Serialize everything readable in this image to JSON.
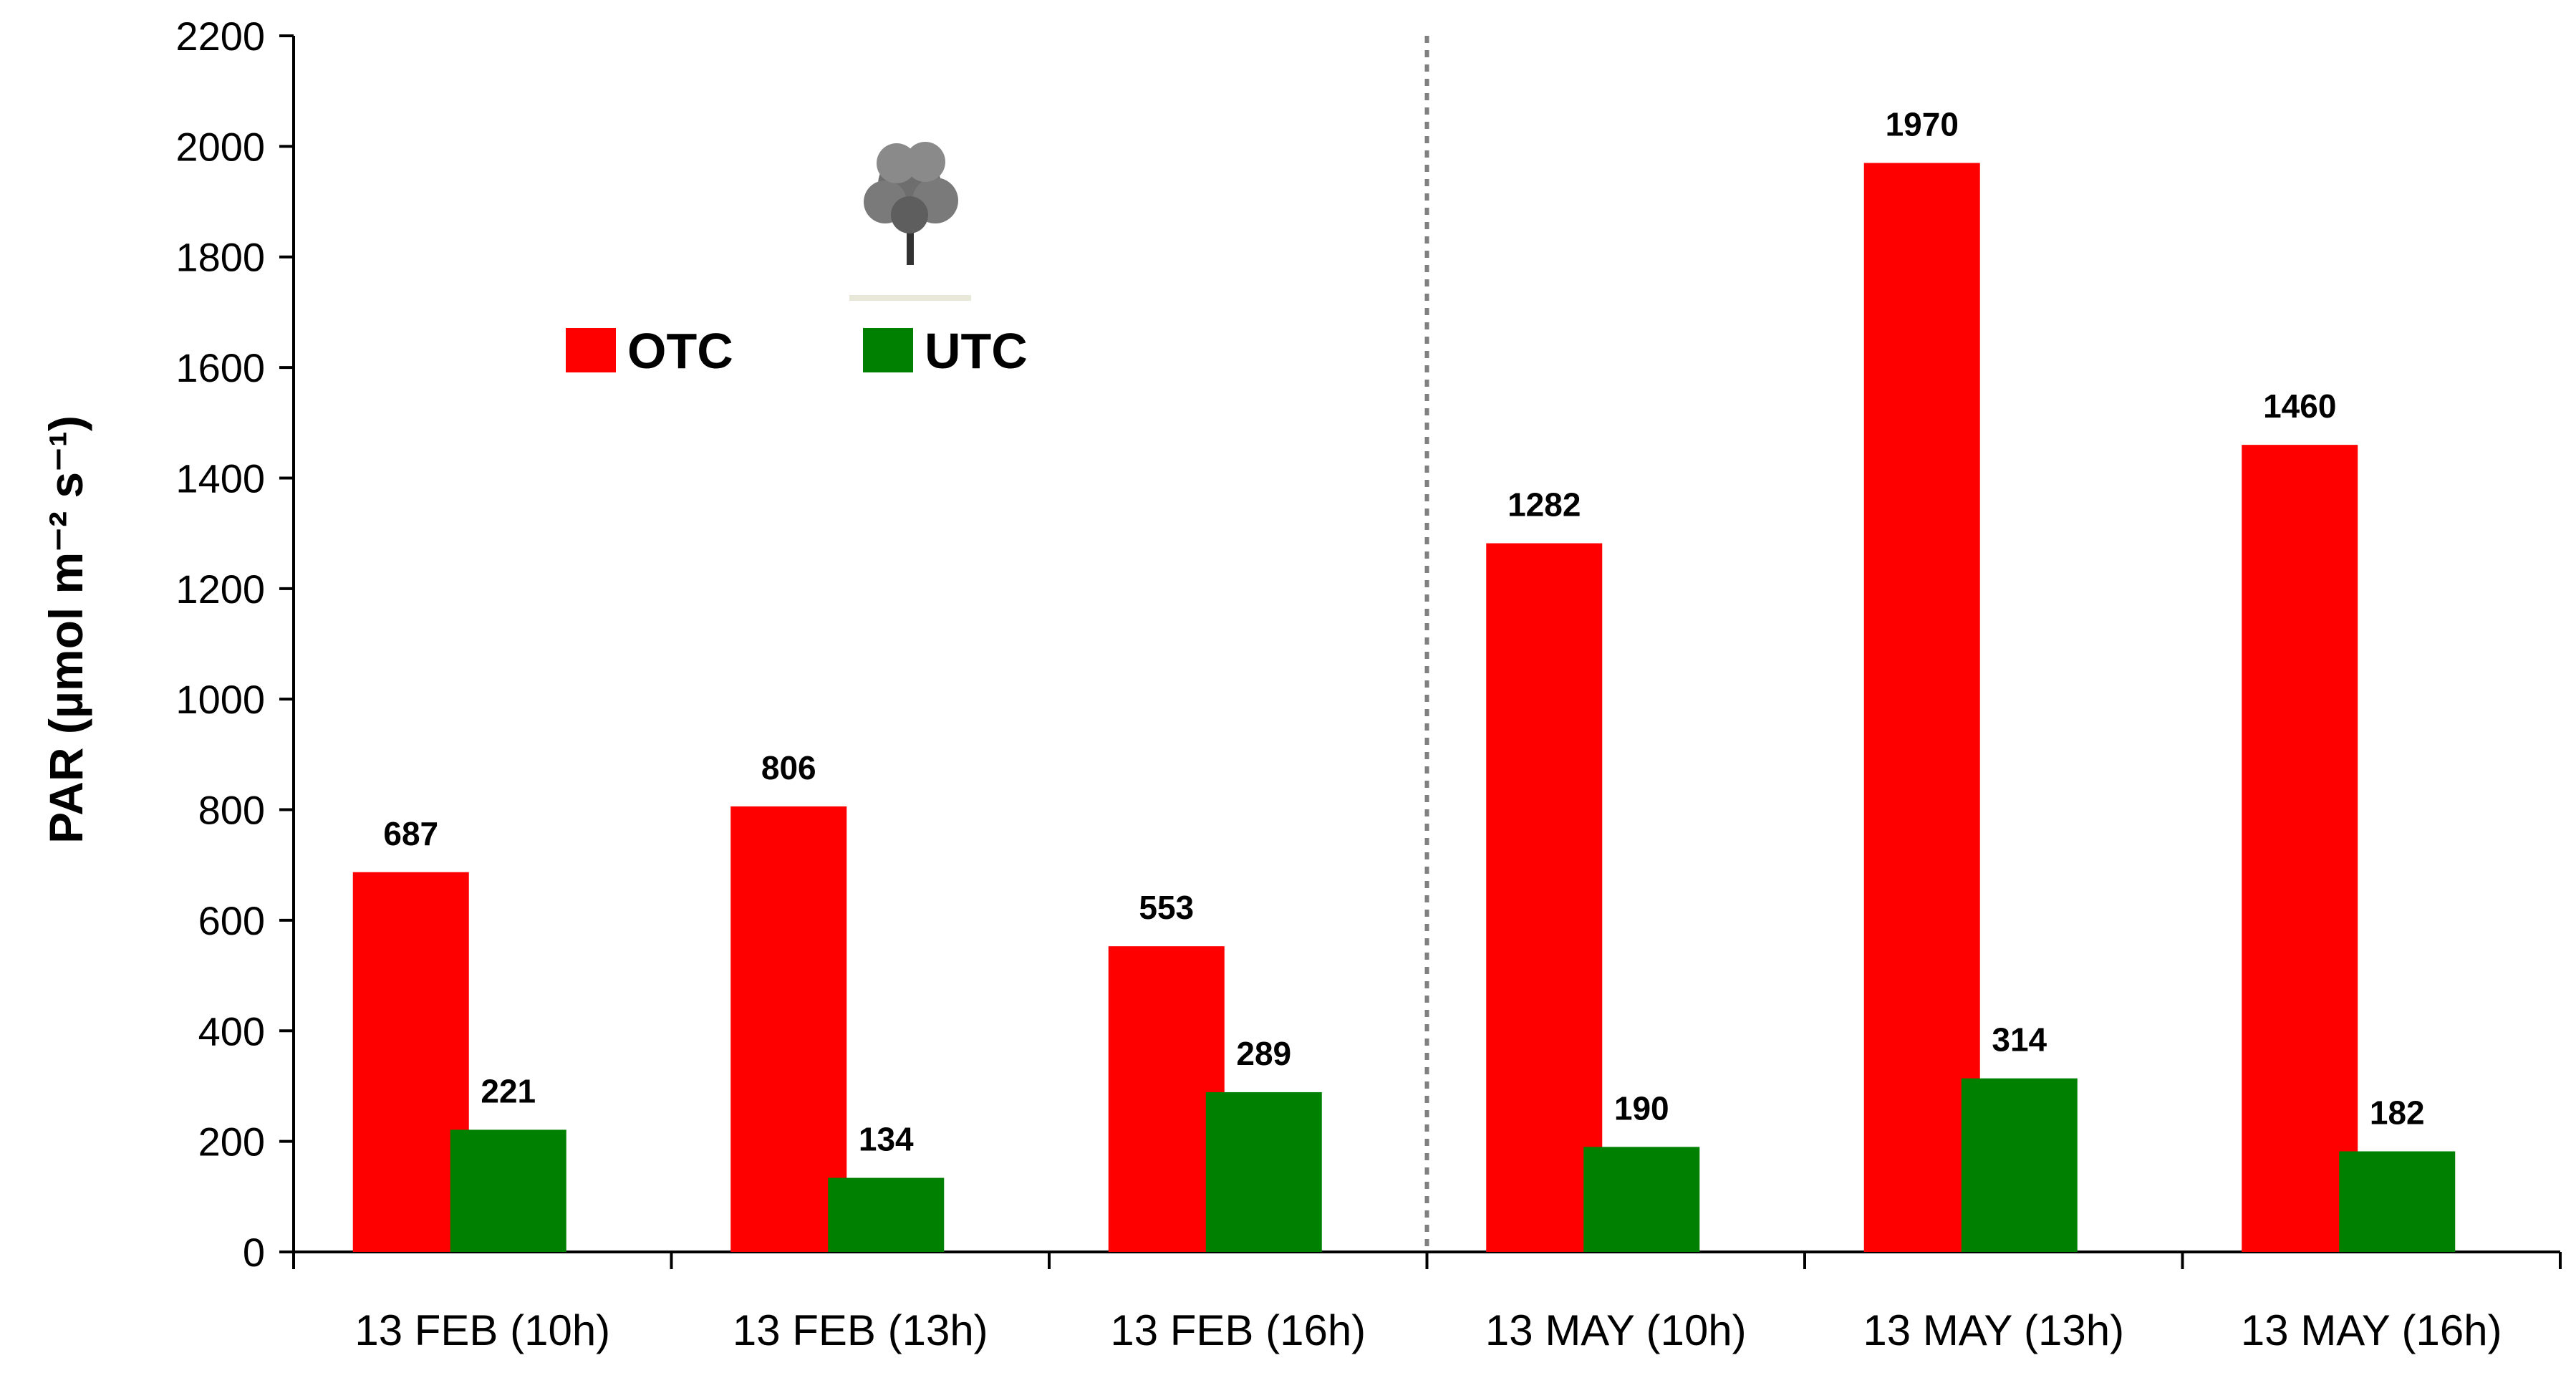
{
  "chart_data": {
    "type": "bar",
    "title": "",
    "xlabel": "",
    "ylabel": "PAR (µmol m⁻² s⁻¹)",
    "ylim": [
      0,
      2200
    ],
    "yticks": [
      0,
      200,
      400,
      600,
      800,
      1000,
      1200,
      1400,
      1600,
      1800,
      2000,
      2200
    ],
    "categories": [
      "13 FEB (10h)",
      "13 FEB (13h)",
      "13 FEB (16h)",
      "13 MAY (10h)",
      "13 MAY (13h)",
      "13 MAY (16h)"
    ],
    "series": [
      {
        "name": "OTC",
        "values": [
          687,
          806,
          553,
          1282,
          1970,
          1460
        ],
        "color": "#ff0000"
      },
      {
        "name": "UTC",
        "values": [
          221,
          134,
          289,
          190,
          314,
          182
        ],
        "color": "#008000"
      }
    ],
    "grid": false,
    "legend": "upper-left",
    "separator_after_category": 3,
    "decoration_icon": "tree-icon"
  }
}
